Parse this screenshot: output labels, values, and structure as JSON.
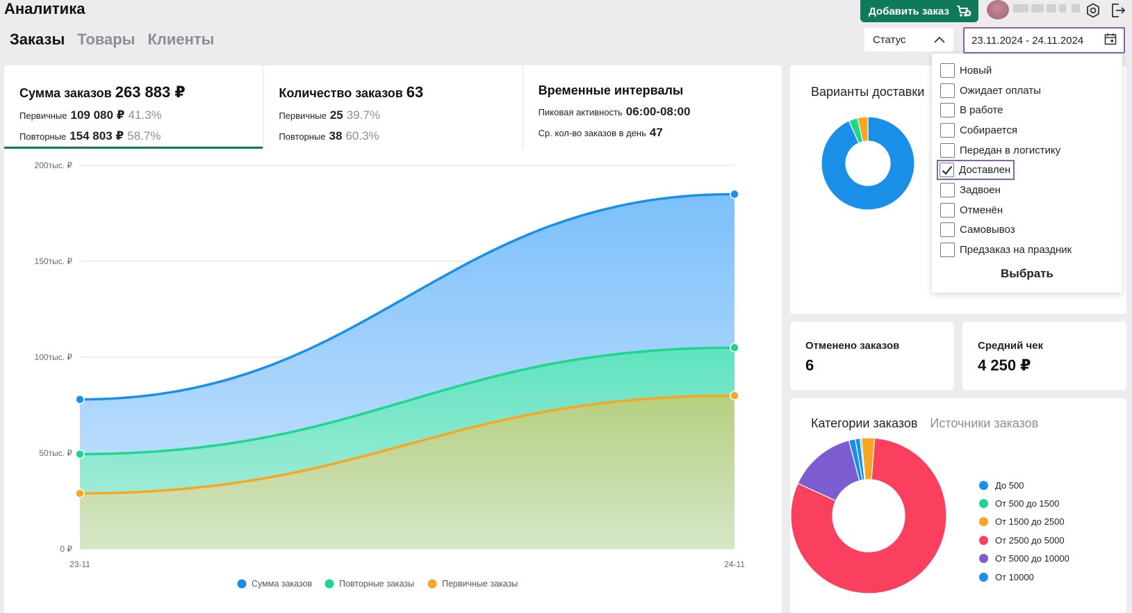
{
  "app": {
    "title": "Аналитика"
  },
  "tabs": [
    {
      "label": "Заказы",
      "active": true
    },
    {
      "label": "Товары",
      "active": false
    },
    {
      "label": "Клиенты",
      "active": false
    }
  ],
  "header": {
    "add_order_label": "Добавить заказ",
    "status_select": {
      "value": "Статус"
    },
    "date_range": {
      "value": "23.11.2024 - 24.11.2024"
    }
  },
  "kpis": {
    "sum": {
      "title": "Сумма заказов",
      "value": "263 883 ₽",
      "primary_label": "Первичные",
      "primary_value": "109 080 ₽",
      "primary_pct": "41.3%",
      "repeat_label": "Повторные",
      "repeat_value": "154 803 ₽",
      "repeat_pct": "58.7%"
    },
    "count": {
      "title": "Количество заказов",
      "value": "63",
      "primary_label": "Первичные",
      "primary_value": "25",
      "primary_pct": "39.7%",
      "repeat_label": "Повторные",
      "repeat_value": "38",
      "repeat_pct": "60.3%"
    },
    "time": {
      "title": "Временные интервалы",
      "peak_label": "Пиковая активность",
      "peak_value": "06:00-08:00",
      "avg_label": "Ср. кол-во заказов в день",
      "avg_value": "47"
    }
  },
  "delivery": {
    "title": "Варианты доставки"
  },
  "status_dropdown": {
    "options": [
      {
        "label": "Новый",
        "checked": false
      },
      {
        "label": "Ожидает оплаты",
        "checked": false
      },
      {
        "label": "В работе",
        "checked": false
      },
      {
        "label": "Собирается",
        "checked": false
      },
      {
        "label": "Передан в логистику",
        "checked": false
      },
      {
        "label": "Доставлен",
        "checked": true
      },
      {
        "label": "Задвоен",
        "checked": false
      },
      {
        "label": "Отменён",
        "checked": false
      },
      {
        "label": "Самовывоз",
        "checked": false
      },
      {
        "label": "Предзаказ на праздник",
        "checked": false
      }
    ],
    "select_label": "Выбрать"
  },
  "cancelled": {
    "title": "Отменено заказов",
    "value": "6"
  },
  "avg_check": {
    "title": "Средний чек",
    "value": "4 250 ₽"
  },
  "categories": {
    "tabs": [
      {
        "label": "Категории заказов",
        "active": true
      },
      {
        "label": "Источники заказов",
        "active": false
      }
    ]
  },
  "colors": {
    "accent_green": "#0e7a5b",
    "highlight_purple": "#8b5fb0",
    "blue": "#1a8fe8",
    "green": "#1fd68d",
    "orange": "#f5a623",
    "red": "#fb3f5e",
    "purple": "#7b5dd1"
  },
  "chart_data": [
    {
      "type": "area",
      "x": [
        "23-11",
        "24-11"
      ],
      "yticks": [
        "0 ₽",
        "50тыс. ₽",
        "100тыс. ₽",
        "150тыс. ₽",
        "200тыс. ₽"
      ],
      "ylim": [
        0,
        200000
      ],
      "series": [
        {
          "name": "Сумма заказов",
          "values": [
            78000,
            185000
          ],
          "color": "#1a8fe8"
        },
        {
          "name": "Повторные заказы",
          "values": [
            49500,
            105000
          ],
          "color": "#1fd68d"
        },
        {
          "name": "Первичные заказы",
          "values": [
            29000,
            80000
          ],
          "color": "#f5a623"
        }
      ],
      "legend": "bottom"
    },
    {
      "type": "pie",
      "slices": [
        {
          "value": 90,
          "color": "#1a8fe8"
        },
        {
          "value": 3,
          "color": "#1fd68d"
        },
        {
          "value": 3.5,
          "color": "#f5a623"
        }
      ]
    },
    {
      "type": "pie",
      "legend": "right",
      "slices": [
        {
          "name": "До 500",
          "value": 1,
          "color": "#1a8fe8"
        },
        {
          "name": "От 500 до 1500",
          "value": 0.3,
          "color": "#1fd68d"
        },
        {
          "name": "От 1500 до 2500",
          "value": 2.7,
          "color": "#f5a623"
        },
        {
          "name": "От 2500 до 5000",
          "value": 80,
          "color": "#fb3f5e"
        },
        {
          "name": "От 5000 до 10000",
          "value": 14,
          "color": "#7b5dd1"
        },
        {
          "name": "От 10000",
          "value": 1.3,
          "color": "#1a8fe8"
        }
      ]
    }
  ]
}
